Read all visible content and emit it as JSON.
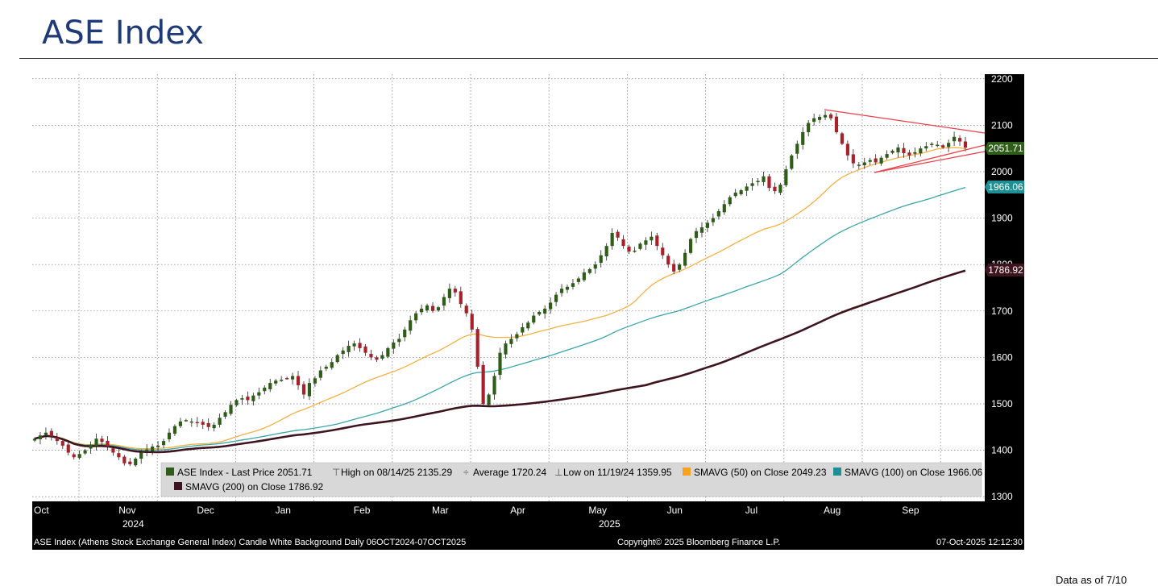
{
  "header": {
    "title": "ASE Index"
  },
  "footnote": "Data as of 7/10",
  "chart_data": {
    "type": "candlestick",
    "title": "ASE Index",
    "ylim": [
      1290,
      2210
    ],
    "yticks": [
      1300,
      1400,
      1500,
      1600,
      1700,
      1800,
      1900,
      2000,
      2100,
      2200
    ],
    "grid": true,
    "x_month_labels": [
      "Oct",
      "Nov",
      "Dec",
      "Jan",
      "Feb",
      "Mar",
      "Apr",
      "May",
      "Jun",
      "Jul",
      "Aug",
      "Sep"
    ],
    "x_year_labels": [
      "2024",
      "2025"
    ],
    "close_series": [
      1425,
      1432,
      1438,
      1430,
      1420,
      1410,
      1395,
      1385,
      1392,
      1400,
      1412,
      1425,
      1418,
      1408,
      1395,
      1385,
      1372,
      1370,
      1382,
      1395,
      1402,
      1408,
      1410,
      1420,
      1438,
      1452,
      1462,
      1465,
      1462,
      1460,
      1455,
      1450,
      1455,
      1470,
      1482,
      1498,
      1508,
      1512,
      1508,
      1518,
      1525,
      1535,
      1545,
      1550,
      1552,
      1555,
      1560,
      1540,
      1520,
      1545,
      1555,
      1572,
      1580,
      1590,
      1605,
      1615,
      1625,
      1630,
      1620,
      1610,
      1600,
      1595,
      1605,
      1620,
      1632,
      1640,
      1660,
      1680,
      1695,
      1705,
      1712,
      1700,
      1708,
      1730,
      1748,
      1740,
      1715,
      1695,
      1660,
      1580,
      1500,
      1520,
      1560,
      1610,
      1630,
      1640,
      1650,
      1665,
      1675,
      1690,
      1698,
      1705,
      1718,
      1735,
      1748,
      1752,
      1760,
      1770,
      1783,
      1790,
      1800,
      1820,
      1840,
      1868,
      1858,
      1840,
      1828,
      1830,
      1845,
      1852,
      1860,
      1840,
      1820,
      1800,
      1785,
      1800,
      1825,
      1855,
      1872,
      1880,
      1890,
      1900,
      1915,
      1930,
      1945,
      1955,
      1960,
      1968,
      1975,
      1980,
      1990,
      1965,
      1958,
      1972,
      2005,
      2035,
      2060,
      2085,
      2105,
      2115,
      2118,
      2122,
      2115,
      2085,
      2060,
      2035,
      2018,
      2015,
      2020,
      2025,
      2020,
      2030,
      2038,
      2045,
      2052,
      2040,
      2035,
      2042,
      2050,
      2055,
      2060,
      2058,
      2052,
      2062,
      2075,
      2065,
      2051.71
    ],
    "overlays": [
      {
        "name": "SMAVG (50)",
        "color": "#f6b042",
        "last": 2049.23
      },
      {
        "name": "SMAVG (100)",
        "color": "#3aa6aa",
        "last": 1966.06
      },
      {
        "name": "SMAVG (200)",
        "color": "#3d1420",
        "last": 1786.92
      }
    ],
    "last_price_tag": "2051.71",
    "sma100_tag": "1966.06",
    "sma200_tag": "1786.92",
    "legend": {
      "item1": "ASE Index - Last Price 2051.71",
      "item2": "High on 08/14/25 2135.29",
      "item3": "Average 1720.24",
      "item4": "Low on 11/19/24 1359.95",
      "item5": "SMAVG (50)  on Close 2049.23",
      "item6": "SMAVG (100)  on Close 1966.06",
      "item7": "SMAVG (200)  on Close 1786.92"
    },
    "footer_left": "ASE Index (Athens Stock Exchange General Index) Candle White Background Daily 06OCT2024-07OCT2025",
    "footer_center": "Copyright© 2025 Bloomberg Finance L.P.",
    "footer_right": "07-Oct-2025 12:12:30"
  }
}
